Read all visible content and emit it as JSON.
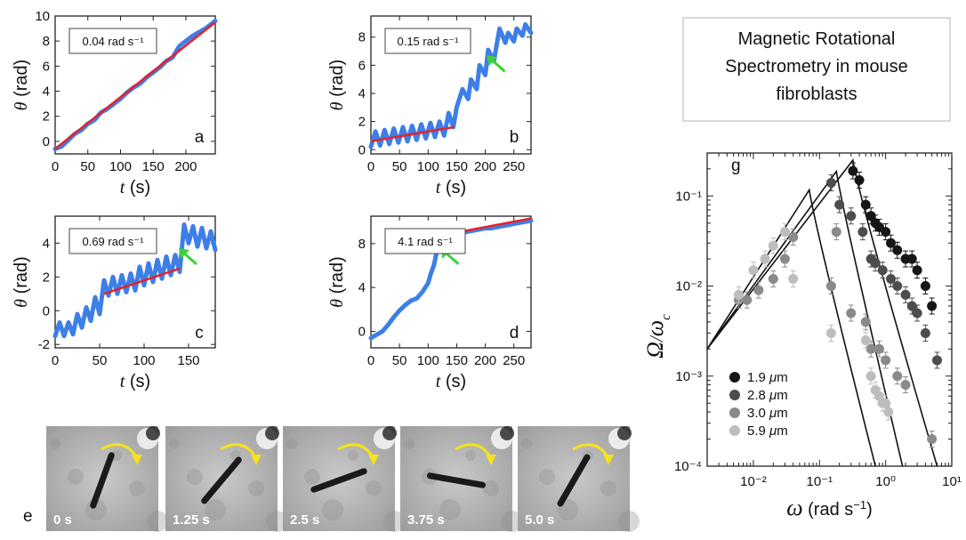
{
  "figure_title": "Magnetic Rotational Spectrometry in mouse fibroblasts",
  "figure_title_lines": [
    "Magnetic Rotational",
    "Spectrometry in mouse",
    "fibroblasts"
  ],
  "colors": {
    "data": "#3d7fe6",
    "fit": "#e8202a",
    "arrow": "#3ad23a",
    "rotation_arrow": "#f5e21a"
  },
  "chart_data": [
    {
      "panel": "a",
      "type": "line",
      "rate_label": "0.04 rad s⁻¹",
      "xlabel": "t (s)",
      "ylabel": "θ (rad)",
      "xlim": [
        0,
        245
      ],
      "ylim": [
        -1,
        10
      ],
      "xticks": [
        0,
        50,
        100,
        150,
        200
      ],
      "yticks": [
        0,
        2,
        4,
        6,
        8,
        10
      ],
      "series": [
        {
          "role": "data",
          "x": [
            0,
            10,
            20,
            30,
            40,
            50,
            60,
            70,
            80,
            90,
            100,
            110,
            120,
            130,
            140,
            150,
            160,
            170,
            180,
            190,
            200,
            210,
            220,
            230,
            240,
            245
          ],
          "y": [
            -0.6,
            -0.4,
            0.1,
            0.6,
            0.9,
            1.4,
            1.7,
            2.3,
            2.6,
            3.0,
            3.4,
            3.9,
            4.3,
            4.6,
            5.1,
            5.5,
            5.9,
            6.4,
            6.7,
            7.6,
            8.0,
            8.4,
            8.7,
            9.0,
            9.4,
            9.6
          ]
        },
        {
          "role": "fit",
          "x": [
            0,
            245
          ],
          "y": [
            -0.6,
            9.5
          ]
        }
      ]
    },
    {
      "panel": "b",
      "type": "line",
      "rate_label": "0.15 rad s⁻¹",
      "xlabel": "t (s)",
      "ylabel": "θ (rad)",
      "xlim": [
        0,
        280
      ],
      "ylim": [
        -0.3,
        9.5
      ],
      "xticks": [
        0,
        50,
        100,
        150,
        200,
        250
      ],
      "yticks": [
        0,
        2,
        4,
        6,
        8
      ],
      "series": [
        {
          "role": "data",
          "x": [
            0,
            8,
            16,
            24,
            32,
            40,
            48,
            56,
            64,
            72,
            80,
            88,
            96,
            104,
            112,
            120,
            128,
            136,
            144,
            150,
            160,
            170,
            175,
            185,
            190,
            200,
            205,
            215,
            225,
            235,
            240,
            250,
            255,
            265,
            270,
            280
          ],
          "y": [
            0.2,
            1.3,
            0.3,
            1.4,
            0.4,
            1.5,
            0.5,
            1.6,
            0.6,
            1.7,
            0.7,
            1.8,
            0.8,
            1.9,
            0.9,
            2.0,
            1.0,
            2.6,
            1.6,
            3.0,
            4.3,
            3.6,
            5.0,
            4.3,
            6.0,
            5.3,
            7.1,
            6.3,
            8.6,
            7.6,
            8.3,
            7.7,
            8.6,
            8.1,
            8.9,
            8.3
          ]
        },
        {
          "role": "fit",
          "x": [
            0,
            145
          ],
          "y": [
            0.6,
            1.6
          ]
        }
      ],
      "annotation": {
        "type": "arrow",
        "points_to": [
          203,
          6.7
        ]
      }
    },
    {
      "panel": "c",
      "type": "line",
      "rate_label": "0.69 rad s⁻¹",
      "xlabel": "t (s)",
      "ylabel": "θ (rad)",
      "xlim": [
        0,
        180
      ],
      "ylim": [
        -2.2,
        5.6
      ],
      "xticks": [
        0,
        50,
        100,
        150
      ],
      "yticks": [
        -2,
        0,
        2,
        4
      ],
      "series": [
        {
          "role": "data",
          "x": [
            0,
            5,
            10,
            15,
            20,
            25,
            30,
            35,
            40,
            45,
            50,
            55,
            60,
            65,
            70,
            75,
            80,
            85,
            90,
            95,
            100,
            105,
            110,
            115,
            120,
            125,
            130,
            135,
            140,
            145,
            150,
            155,
            160,
            165,
            170,
            175,
            180
          ],
          "y": [
            -1.5,
            -0.7,
            -1.5,
            -0.7,
            -1.4,
            -0.2,
            -1.0,
            0.2,
            -0.6,
            0.8,
            -0.2,
            1.8,
            0.9,
            2.0,
            1.0,
            2.1,
            1.1,
            2.2,
            1.2,
            2.6,
            1.5,
            2.8,
            1.7,
            3.0,
            1.9,
            3.2,
            2.1,
            3.3,
            2.3,
            5.1,
            4.0,
            5.0,
            3.8,
            4.9,
            3.7,
            4.7,
            3.6
          ]
        },
        {
          "role": "fit",
          "x": [
            55,
            140
          ],
          "y": [
            1.0,
            2.5
          ]
        }
      ],
      "annotation": {
        "type": "arrow",
        "points_to": [
          139,
          3.7
        ]
      }
    },
    {
      "panel": "d",
      "type": "line",
      "rate_label": "4.1 rad s⁻¹",
      "xlabel": "t (s)",
      "ylabel": "θ (rad)",
      "xlim": [
        0,
        280
      ],
      "ylim": [
        -1.5,
        10.5
      ],
      "xticks": [
        0,
        50,
        100,
        150,
        200,
        250
      ],
      "yticks": [
        0,
        4,
        8
      ],
      "series": [
        {
          "role": "data",
          "x": [
            0,
            10,
            20,
            30,
            40,
            50,
            60,
            70,
            80,
            90,
            100,
            105,
            110,
            115,
            120,
            125,
            130,
            140,
            150,
            160,
            170,
            180,
            190,
            200,
            210,
            220,
            230,
            240,
            250,
            260,
            270,
            280
          ],
          "y": [
            -0.6,
            -0.3,
            0.0,
            0.6,
            1.3,
            1.9,
            2.4,
            2.8,
            3.0,
            3.6,
            4.4,
            5.3,
            6.0,
            7.2,
            7.8,
            8.2,
            8.6,
            8.8,
            8.9,
            9.0,
            9.1,
            9.2,
            9.3,
            9.4,
            9.4,
            9.5,
            9.6,
            9.7,
            9.8,
            9.9,
            10.0,
            10.1
          ]
        },
        {
          "role": "fit",
          "x": [
            128,
            280
          ],
          "y": [
            8.8,
            10.3
          ]
        }
      ],
      "annotation": {
        "type": "arrow",
        "points_to": [
          122,
          7.6
        ]
      }
    },
    {
      "panel": "g",
      "type": "scatter",
      "scale": "log-log",
      "xlabel": "ω (rad s⁻¹)",
      "ylabel": "Ω/ωc",
      "xlim": [
        0.002,
        10
      ],
      "ylim": [
        0.0001,
        0.3
      ],
      "xticks": [
        "10⁻²",
        "10⁻¹",
        "10⁰",
        "10¹"
      ],
      "yticks": [
        "10⁻⁴",
        "10⁻³",
        "10⁻²",
        "10⁻¹"
      ],
      "legend_position": "lower-left",
      "series": [
        {
          "name": "1.9 μm",
          "color": "#161616",
          "x": [
            0.32,
            0.4,
            0.5,
            0.6,
            0.7,
            0.8,
            1.0,
            1.2,
            1.5,
            2.0,
            2.5,
            3.0,
            4.0,
            5.0
          ],
          "y": [
            0.19,
            0.15,
            0.08,
            0.06,
            0.05,
            0.045,
            0.04,
            0.03,
            0.025,
            0.02,
            0.02,
            0.015,
            0.01,
            0.006
          ]
        },
        {
          "name": "2.8 μm",
          "color": "#4d4d4d",
          "x": [
            0.15,
            0.2,
            0.3,
            0.45,
            0.6,
            0.7,
            0.9,
            1.2,
            1.5,
            2.0,
            2.5,
            3.0,
            4.0,
            6.0
          ],
          "y": [
            0.14,
            0.08,
            0.06,
            0.04,
            0.02,
            0.018,
            0.015,
            0.012,
            0.01,
            0.008,
            0.006,
            0.005,
            0.003,
            0.0015
          ]
        },
        {
          "name": "3.0 μm",
          "color": "#8a8a8a",
          "x": [
            0.006,
            0.008,
            0.012,
            0.02,
            0.03,
            0.04,
            0.15,
            0.18,
            0.3,
            0.5,
            0.6,
            0.8,
            1.0,
            1.5,
            2.0,
            5.0
          ],
          "y": [
            0.007,
            0.007,
            0.009,
            0.012,
            0.02,
            0.035,
            0.01,
            0.04,
            0.005,
            0.004,
            0.002,
            0.002,
            0.0015,
            0.001,
            0.0008,
            0.0002
          ]
        },
        {
          "name": "5.9 μm",
          "color": "#bdbdbd",
          "x": [
            0.006,
            0.01,
            0.015,
            0.02,
            0.03,
            0.04,
            0.15,
            0.5,
            0.6,
            0.7,
            0.8,
            0.9,
            1.0,
            1.1
          ],
          "y": [
            0.008,
            0.015,
            0.02,
            0.028,
            0.04,
            0.012,
            0.003,
            0.0025,
            0.001,
            0.0007,
            0.0006,
            0.0005,
            0.0005,
            0.0004
          ]
        }
      ],
      "model_curves": [
        {
          "peak": 0.07,
          "end": [
            0.7,
            0.0001
          ]
        },
        {
          "peak": 0.18,
          "end": [
            1.8,
            0.0001
          ]
        },
        {
          "peak": 0.32,
          "end": [
            6.0,
            0.0001
          ]
        }
      ]
    }
  ],
  "frames": {
    "panel": "e",
    "times": [
      "0 s",
      "1.25 s",
      "2.5 s",
      "3.75 s",
      "5.0 s"
    ],
    "rod_angle_deg": [
      -70,
      -50,
      -20,
      10,
      -60
    ]
  }
}
